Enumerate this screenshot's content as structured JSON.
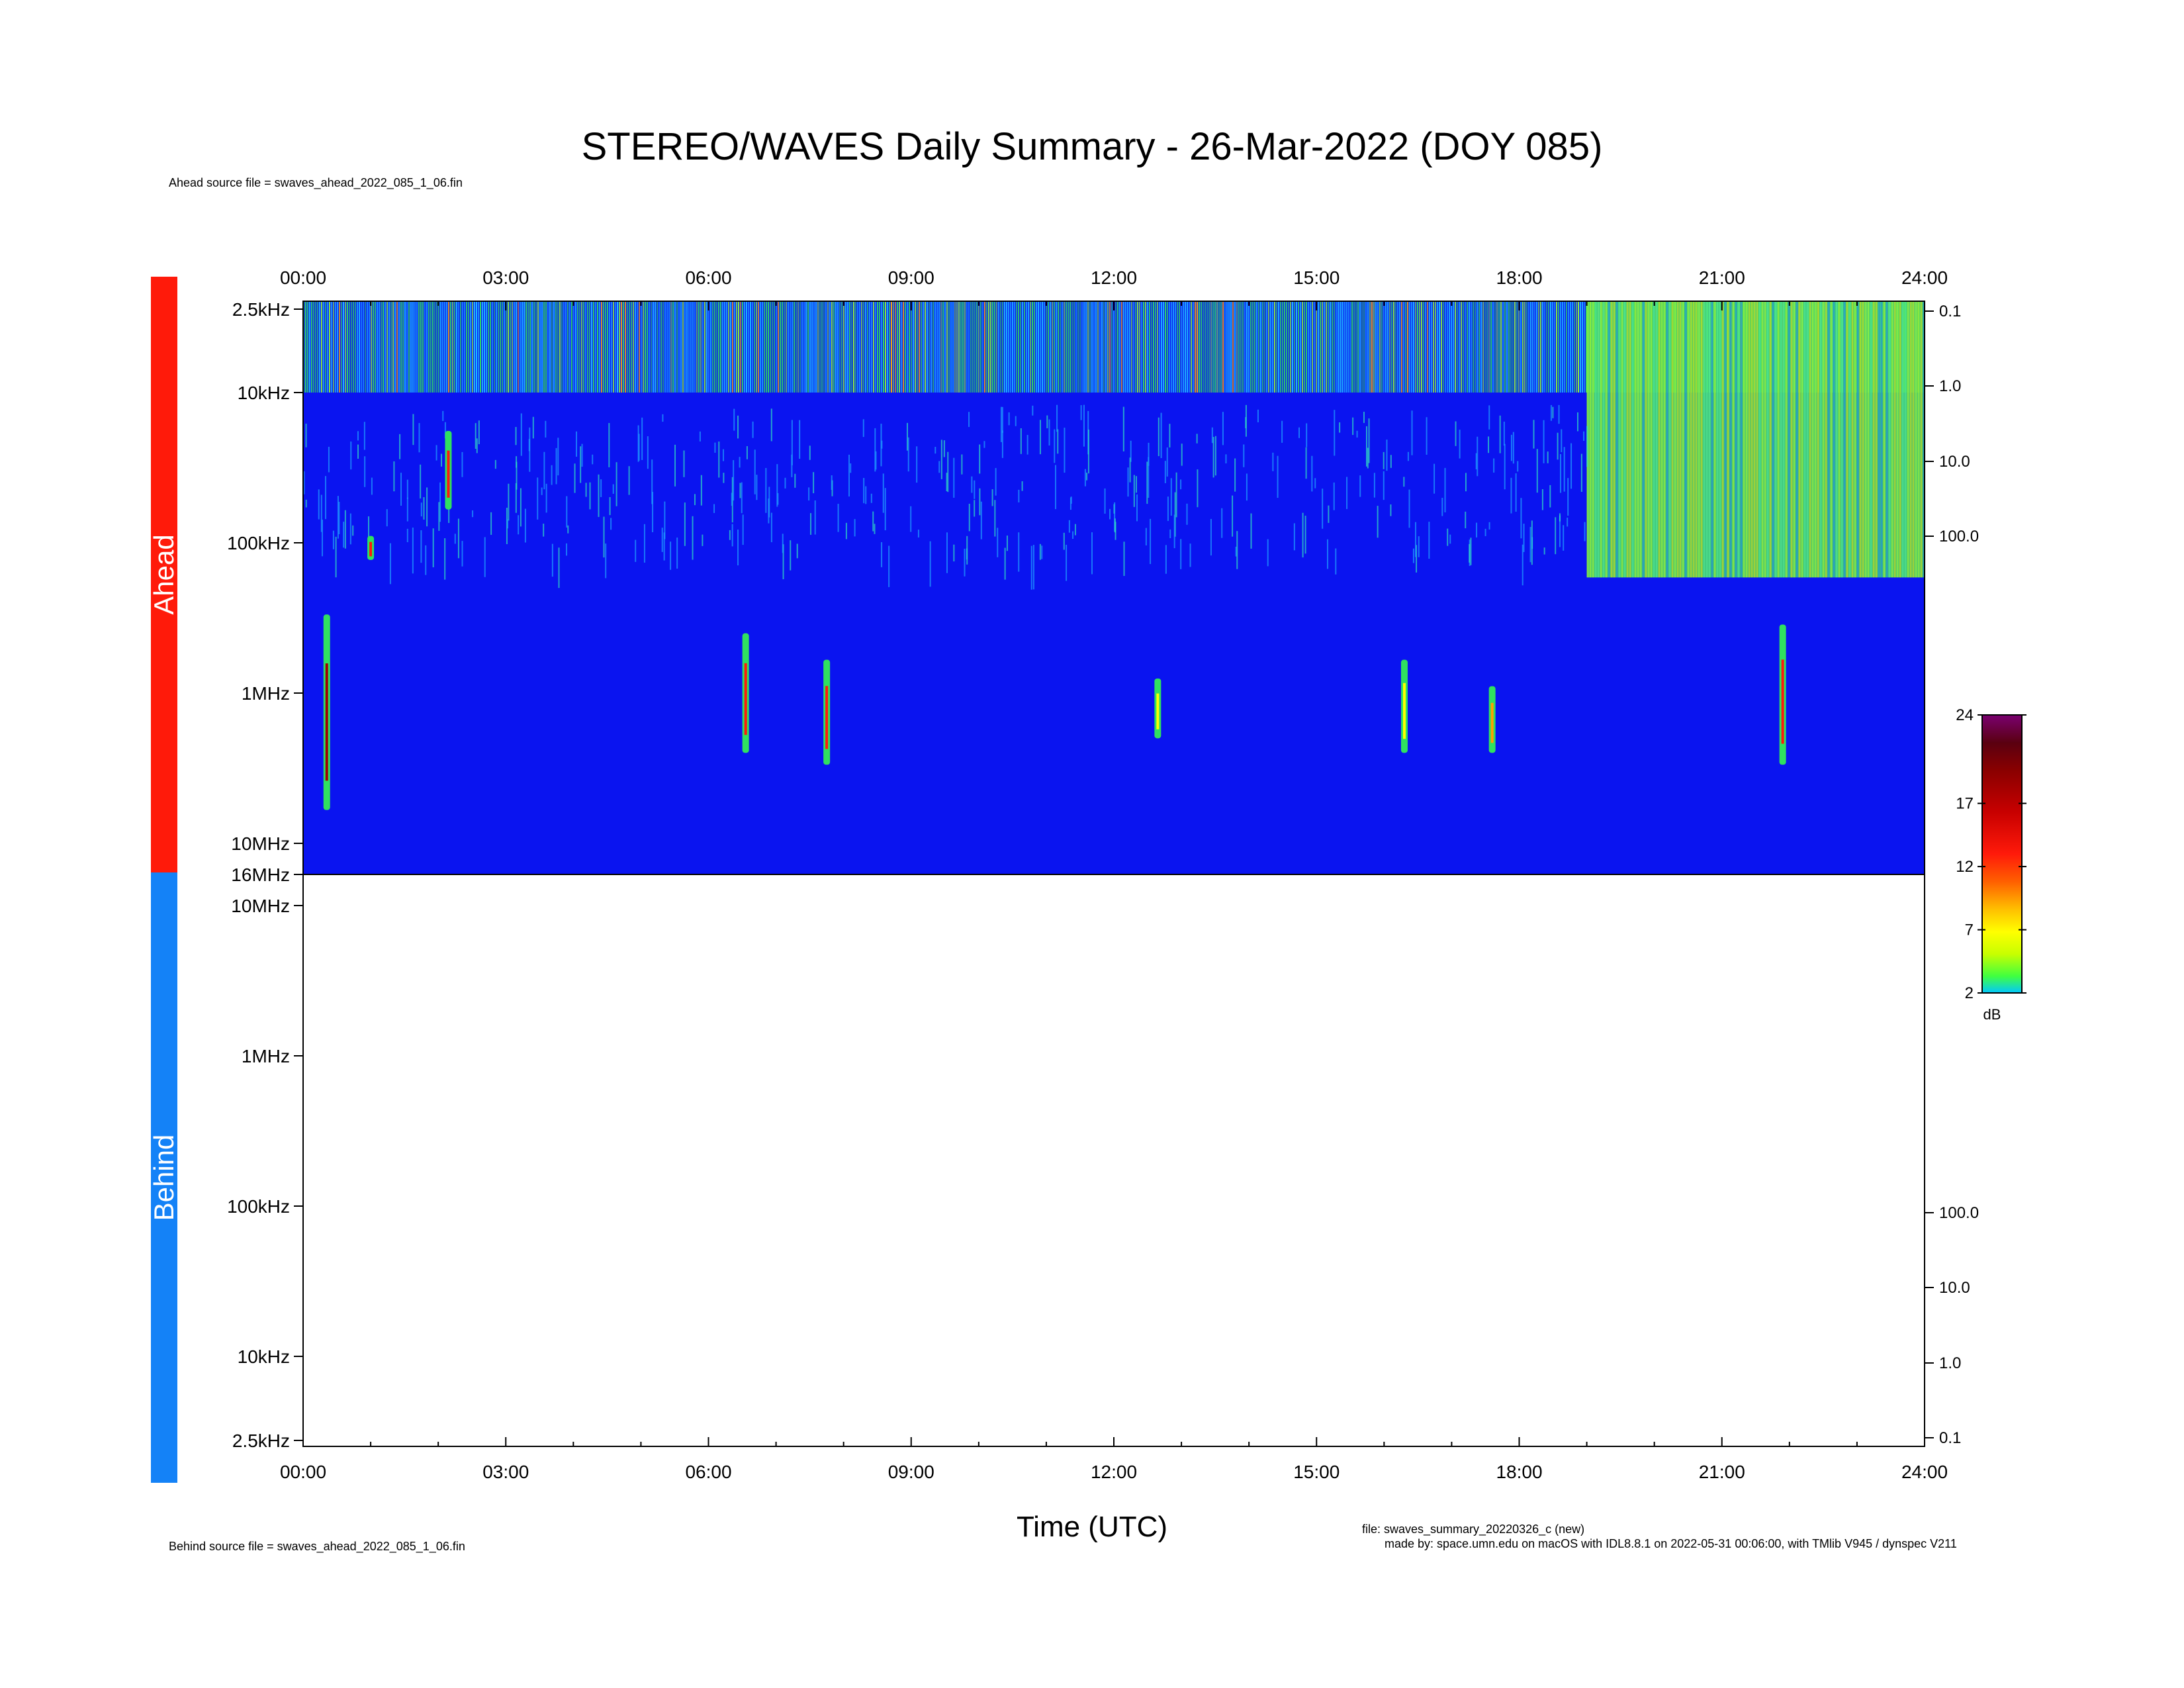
{
  "title": "STEREO/WAVES Daily Summary - 26-Mar-2022 (DOY 085)",
  "ahead_source": "Ahead source file = swaves_ahead_2022_085_1_06.fin",
  "behind_source": "Behind source file = swaves_ahead_2022_085_1_06.fin",
  "file_note": "file: swaves_summary_20220326_c (new)",
  "made_note": "made by: space.umn.edu on macOS with IDL8.8.1 on 2022-05-31 00:06:00, with TMlib V945 / dynspec V211",
  "panel_labels": {
    "ahead": "Ahead",
    "behind": "Behind"
  },
  "colors": {
    "ahead": "#ff1a0a",
    "behind": "#1482f7",
    "background_signal": "#0a14f0"
  },
  "chart_data": {
    "type": "heatmap",
    "xlabel": "Time (UTC)",
    "x_ticks": [
      "00:00",
      "03:00",
      "06:00",
      "09:00",
      "12:00",
      "15:00",
      "18:00",
      "21:00",
      "24:00"
    ],
    "xlim_hours": [
      0,
      24
    ],
    "ahead_panel": {
      "y_scale": "log",
      "y_ticks_left": [
        "2.5kHz",
        "10kHz",
        "100kHz",
        "1MHz",
        "10MHz",
        "16MHz"
      ],
      "y_ticks_right": [
        "0.1",
        "1.0",
        "10.0",
        "100.0"
      ],
      "bursts": [
        {
          "start_h": 0.35,
          "top_MHz": 0.3,
          "bottom_MHz": 6.0,
          "peak_dB": 17
        },
        {
          "start_h": 1.0,
          "top_MHz": 0.09,
          "bottom_MHz": 0.13,
          "peak_dB": 14
        },
        {
          "start_h": 2.15,
          "top_MHz": 0.018,
          "bottom_MHz": 0.06,
          "peak_dB": 15
        },
        {
          "start_h": 6.55,
          "top_MHz": 0.4,
          "bottom_MHz": 2.5,
          "peak_dB": 14
        },
        {
          "start_h": 7.75,
          "top_MHz": 0.6,
          "bottom_MHz": 3.0,
          "peak_dB": 14
        },
        {
          "start_h": 12.65,
          "top_MHz": 0.8,
          "bottom_MHz": 2.0,
          "peak_dB": 6
        },
        {
          "start_h": 16.3,
          "top_MHz": 0.6,
          "bottom_MHz": 2.5,
          "peak_dB": 7
        },
        {
          "start_h": 17.6,
          "top_MHz": 0.9,
          "bottom_MHz": 2.5,
          "peak_dB": 10
        },
        {
          "start_h": 21.9,
          "top_MHz": 0.35,
          "bottom_MHz": 3.0,
          "peak_dB": 14
        }
      ],
      "enhanced_region": {
        "start_h": 19.0,
        "end_h": 24.0,
        "top_kHz": 2.5,
        "bottom_kHz": 170,
        "level_dB": 4
      }
    },
    "behind_panel": {
      "y_scale": "log",
      "y_ticks_left": [
        "10MHz",
        "1MHz",
        "100kHz",
        "10kHz",
        "2.5kHz"
      ],
      "y_ticks_right": [
        "100.0",
        "10.0",
        "1.0",
        "0.1"
      ],
      "data": []
    },
    "colorbar": {
      "label": "dB",
      "ticks": [
        "24",
        "17",
        "12",
        "7",
        "2"
      ],
      "range": [
        2,
        24
      ]
    }
  }
}
